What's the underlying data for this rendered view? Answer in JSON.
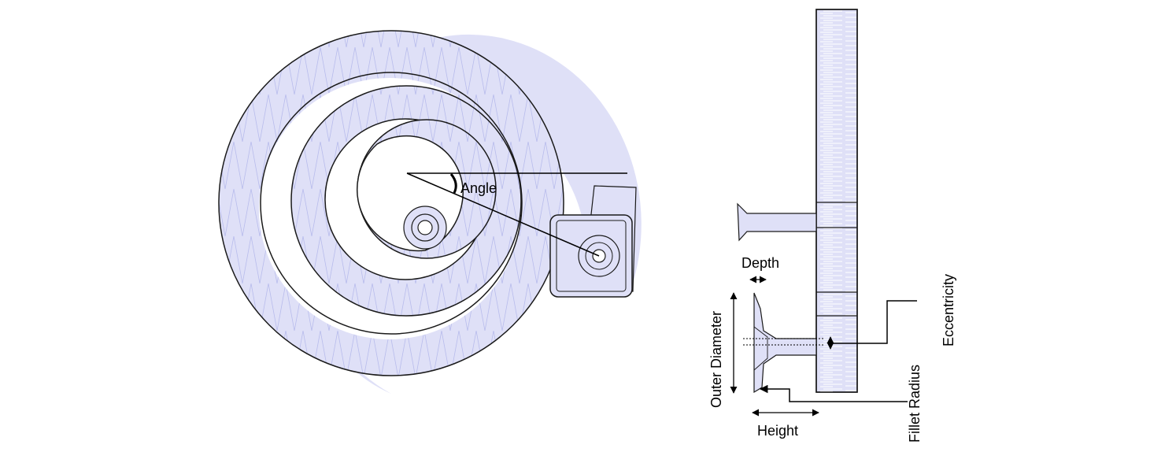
{
  "labels": {
    "angle": "Angle",
    "depth": "Depth",
    "outer_diameter": "Outer Diameter",
    "eccentricity": "Eccentricity",
    "fillet_radius": "Fillet Radius",
    "height": "Height"
  },
  "colors": {
    "fill": "#dfe0f7",
    "hatch": "#b8bcec",
    "outline": "#1a1a1a",
    "background": "#ffffff"
  }
}
